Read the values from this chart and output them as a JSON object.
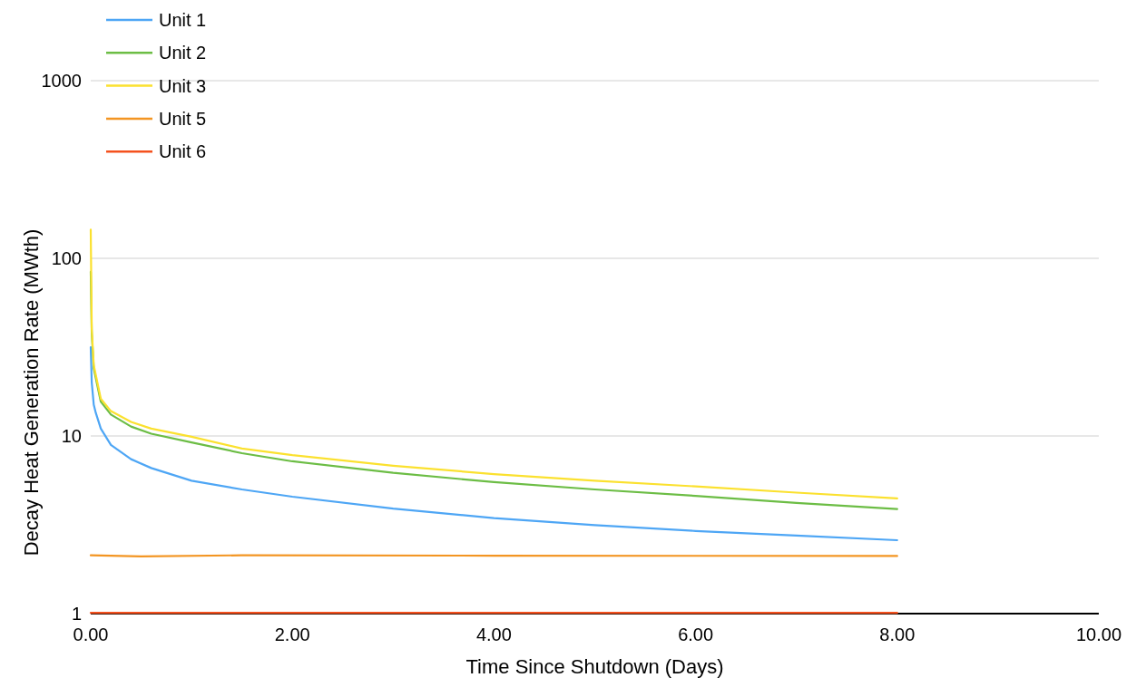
{
  "chart_data": {
    "type": "line",
    "xlabel": "Time Since Shutdown (Days)",
    "ylabel": "Decay Heat Generation Rate (MWth)",
    "log": "y",
    "xlim": [
      0,
      10
    ],
    "xticks": [
      {
        "value": 0,
        "label": "0.00"
      },
      {
        "value": 2,
        "label": "2.00"
      },
      {
        "value": 4,
        "label": "4.00"
      },
      {
        "value": 6,
        "label": "6.00"
      },
      {
        "value": 8,
        "label": "8.00"
      },
      {
        "value": 10,
        "label": "10.00"
      }
    ],
    "ylim": [
      1,
      1000
    ],
    "yticks": [
      1,
      10,
      100,
      1000
    ],
    "grid": "y",
    "legend": "top left",
    "line_style": "solid",
    "marker": "none",
    "series": [
      {
        "name": "Unit 1",
        "color": "#4ea6f5",
        "x": [
          0,
          0.01,
          0.03,
          0.05,
          0.1,
          0.2,
          0.4,
          0.6,
          1,
          1.5,
          2,
          3,
          4,
          5,
          6,
          7,
          8
        ],
        "values": [
          31.6,
          20,
          15,
          13.5,
          11,
          8.9,
          7.4,
          6.6,
          5.6,
          5,
          4.55,
          3.9,
          3.45,
          3.15,
          2.92,
          2.75,
          2.59
        ]
      },
      {
        "name": "Unit 2",
        "color": "#6cbd45",
        "x": [
          0,
          0.01,
          0.03,
          0.1,
          0.2,
          0.4,
          0.6,
          1,
          1.5,
          2,
          3,
          4,
          5,
          6,
          7,
          8
        ],
        "values": [
          84,
          38,
          24,
          15.6,
          13.2,
          11.3,
          10.3,
          9.2,
          8,
          7.2,
          6.2,
          5.5,
          5,
          4.6,
          4.2,
          3.88
        ]
      },
      {
        "name": "Unit 3",
        "color": "#fbe12f",
        "x": [
          0,
          0.01,
          0.03,
          0.1,
          0.2,
          0.4,
          0.6,
          1,
          1.5,
          2,
          3,
          4,
          5,
          6,
          7,
          8
        ],
        "values": [
          145,
          40,
          25,
          16.2,
          13.8,
          12,
          11,
          9.9,
          8.5,
          7.8,
          6.8,
          6.1,
          5.6,
          5.2,
          4.8,
          4.45
        ]
      },
      {
        "name": "Unit 5",
        "color": "#f39522",
        "x": [
          0,
          0.5,
          1.5,
          4,
          8
        ],
        "values": [
          2.13,
          2.1,
          2.13,
          2.12,
          2.11
        ]
      },
      {
        "name": "Unit 6",
        "color": "#f4511e",
        "x": [
          0,
          8
        ],
        "values": [
          1.01,
          1.01
        ]
      }
    ]
  }
}
